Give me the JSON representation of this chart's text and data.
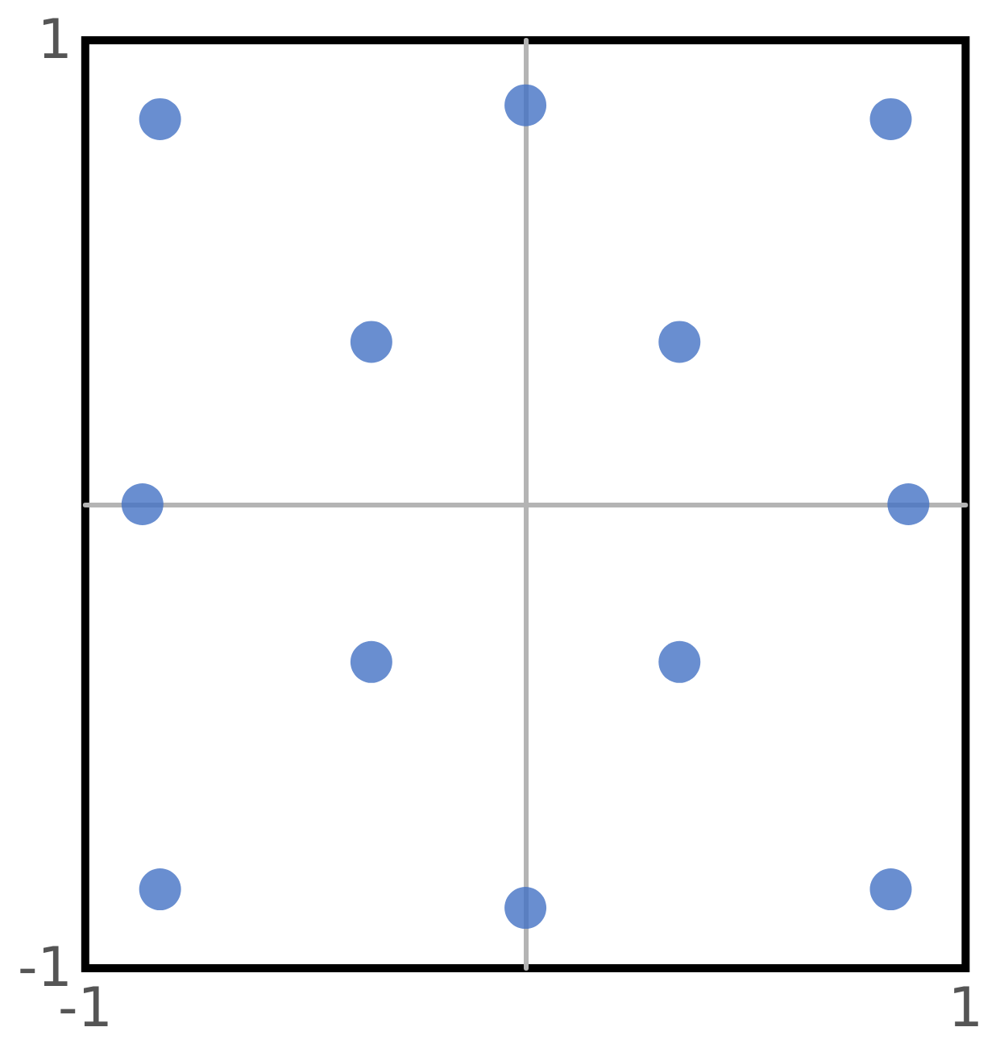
{
  "chart_data": {
    "type": "scatter",
    "x": [
      -0.83,
      0,
      0.83,
      -0.35,
      0.35,
      -0.87,
      0.87,
      -0.35,
      0.35,
      -0.83,
      0,
      0.83
    ],
    "values": [
      0.83,
      0.86,
      0.83,
      0.35,
      0.35,
      0,
      0,
      -0.34,
      -0.34,
      -0.83,
      -0.87,
      -0.83
    ],
    "color": "#4472c4",
    "marker": "circle",
    "xlim": [
      -1,
      1
    ],
    "ylim": [
      -1,
      1
    ],
    "xticks": [
      -1,
      1
    ],
    "yticks": [
      -1,
      1
    ],
    "grid": false
  }
}
